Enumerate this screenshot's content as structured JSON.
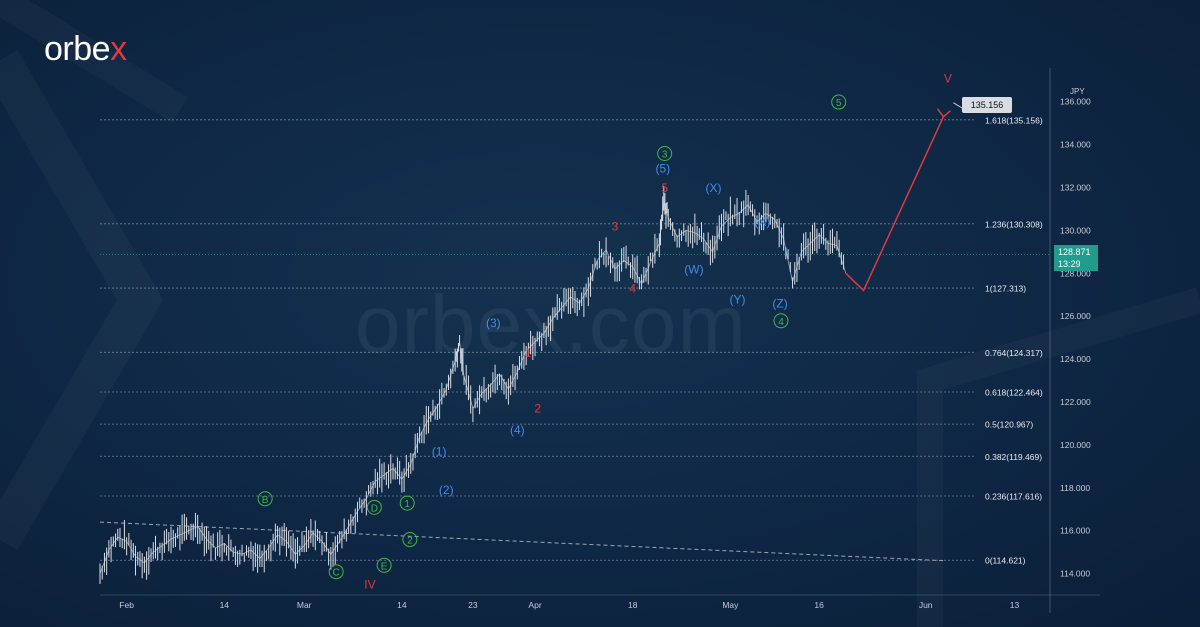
{
  "brand": {
    "logo_text_a": "orbe",
    "logo_text_x": "x",
    "watermark": "orbex.com"
  },
  "colors": {
    "background": "#0e2744",
    "candle": "#d9dde4",
    "fib_line": "#6f8399",
    "wave_red": "#e0393e",
    "wave_blue": "#3f8cf0",
    "wave_green": "#43b649",
    "trendline": "#9aa7b6",
    "current_badge": "#1f9c8c"
  },
  "chart_data": {
    "type": "line",
    "instrument": "",
    "y_axis_unit": "JPY",
    "ylim": [
      113.0,
      137.2
    ],
    "y_ticks": [
      "114.000",
      "116.000",
      "118.000",
      "120.000",
      "122.000",
      "124.000",
      "126.000",
      "128.000",
      "130.000",
      "132.000",
      "134.000",
      "136.000"
    ],
    "x_ticks": [
      "Feb",
      "14",
      "Mar",
      "14",
      "23",
      "Apr",
      "18",
      "May",
      "16",
      "Jun",
      "13"
    ],
    "x_tick_pos": [
      3,
      14,
      23,
      34,
      42,
      49,
      60,
      71,
      81,
      93,
      103
    ],
    "x_range": [
      0,
      107
    ],
    "grid": false,
    "current_price": "128.871",
    "current_time": "13:29",
    "fib_levels": [
      {
        "ratio": "0",
        "price": 114.621,
        "label": "0(114.621)"
      },
      {
        "ratio": "0.236",
        "price": 117.616,
        "label": "0.236(117.616)"
      },
      {
        "ratio": "0.382",
        "price": 119.469,
        "label": "0.382(119.469)"
      },
      {
        "ratio": "0.5",
        "price": 120.967,
        "label": "0.5(120.967)"
      },
      {
        "ratio": "0.618",
        "price": 122.464,
        "label": "0.618(122.464)"
      },
      {
        "ratio": "0.764",
        "price": 124.317,
        "label": "0.764(124.317)"
      },
      {
        "ratio": "1",
        "price": 127.313,
        "label": "1(127.313)"
      },
      {
        "ratio": "1.236",
        "price": 130.308,
        "label": "1.236(130.308)"
      },
      {
        "ratio": "1.618",
        "price": 135.156,
        "label": "1.618(135.156)"
      }
    ],
    "target_callout": "135.156",
    "price_series": [
      [
        0,
        114.0
      ],
      [
        1,
        115.1
      ],
      [
        2,
        115.7
      ],
      [
        3,
        115.5
      ],
      [
        4,
        114.8
      ],
      [
        5,
        114.5
      ],
      [
        6,
        115.0
      ],
      [
        7,
        115.3
      ],
      [
        8,
        115.6
      ],
      [
        9,
        115.8
      ],
      [
        10,
        116.0
      ],
      [
        11,
        116.2
      ],
      [
        12,
        115.6
      ],
      [
        13,
        115.2
      ],
      [
        14,
        115.4
      ],
      [
        15,
        115.0
      ],
      [
        16,
        114.9
      ],
      [
        17,
        115.1
      ],
      [
        18,
        114.7
      ],
      [
        19,
        115.2
      ],
      [
        20,
        115.8
      ],
      [
        21,
        115.5
      ],
      [
        22,
        114.9
      ],
      [
        23,
        115.3
      ],
      [
        24,
        115.9
      ],
      [
        25,
        115.5
      ],
      [
        26,
        114.9
      ],
      [
        27,
        115.5
      ],
      [
        28,
        116.2
      ],
      [
        29,
        116.9
      ],
      [
        30,
        117.5
      ],
      [
        31,
        118.3
      ],
      [
        32,
        118.6
      ],
      [
        33,
        118.9
      ],
      [
        34,
        118.4
      ],
      [
        35,
        119.1
      ],
      [
        36,
        120.4
      ],
      [
        37,
        121.2
      ],
      [
        38,
        121.8
      ],
      [
        39,
        122.6
      ],
      [
        40,
        123.9
      ],
      [
        40.5,
        124.8
      ],
      [
        41,
        123.2
      ],
      [
        42,
        121.7
      ],
      [
        43,
        122.4
      ],
      [
        44,
        122.8
      ],
      [
        45,
        123.3
      ],
      [
        46,
        122.6
      ],
      [
        47,
        123.4
      ],
      [
        48,
        124.4
      ],
      [
        49,
        124.8
      ],
      [
        50,
        125.2
      ],
      [
        51,
        125.9
      ],
      [
        52,
        126.4
      ],
      [
        53,
        126.9
      ],
      [
        54,
        126.6
      ],
      [
        55,
        127.3
      ],
      [
        56,
        128.6
      ],
      [
        57,
        129.1
      ],
      [
        58,
        128.2
      ],
      [
        59,
        128.6
      ],
      [
        60,
        128.3
      ],
      [
        61,
        127.5
      ],
      [
        62,
        128.5
      ],
      [
        63,
        129.4
      ],
      [
        63.5,
        131.3
      ],
      [
        64,
        130.6
      ],
      [
        65,
        129.7
      ],
      [
        66,
        130.0
      ],
      [
        67,
        129.9
      ],
      [
        68,
        129.6
      ],
      [
        69,
        129.0
      ],
      [
        70,
        130.2
      ],
      [
        71,
        130.6
      ],
      [
        72,
        130.8
      ],
      [
        73,
        131.2
      ],
      [
        74,
        130.4
      ],
      [
        75,
        130.8
      ],
      [
        76,
        130.5
      ],
      [
        77,
        129.6
      ],
      [
        78,
        127.6
      ],
      [
        79,
        129.0
      ],
      [
        80,
        129.4
      ],
      [
        81,
        129.8
      ],
      [
        82,
        129.4
      ],
      [
        83,
        129.3
      ],
      [
        84,
        128.0
      ]
    ],
    "projection": [
      [
        84,
        128.0
      ],
      [
        86,
        127.2
      ],
      [
        95,
        135.3
      ]
    ],
    "trendline": [
      [
        0,
        116.4
      ],
      [
        95,
        114.6
      ]
    ],
    "wave_labels": [
      {
        "text": "IV",
        "x": 30.4,
        "y": 113.3,
        "color": "red",
        "style": "plain"
      },
      {
        "text": "V",
        "x": 95.5,
        "y": 136.9,
        "color": "red",
        "style": "plain"
      },
      {
        "text": "1",
        "x": 48.2,
        "y": 124.1,
        "color": "red",
        "style": "plain"
      },
      {
        "text": "2",
        "x": 49.3,
        "y": 121.5,
        "color": "red",
        "style": "plain"
      },
      {
        "text": "3",
        "x": 58.0,
        "y": 130.0,
        "color": "red",
        "style": "plain"
      },
      {
        "text": "4",
        "x": 60.0,
        "y": 127.1,
        "color": "red",
        "style": "plain"
      },
      {
        "text": "5",
        "x": 63.6,
        "y": 131.8,
        "color": "red",
        "style": "plain"
      },
      {
        "text": "(1)",
        "x": 38.2,
        "y": 119.5,
        "color": "blue",
        "style": "plain"
      },
      {
        "text": "(2)",
        "x": 39.0,
        "y": 117.7,
        "color": "blue",
        "style": "plain"
      },
      {
        "text": "(3)",
        "x": 44.3,
        "y": 125.5,
        "color": "blue",
        "style": "plain"
      },
      {
        "text": "(4)",
        "x": 47.0,
        "y": 120.5,
        "color": "blue",
        "style": "plain"
      },
      {
        "text": "(5)",
        "x": 63.4,
        "y": 132.7,
        "color": "blue",
        "style": "plain"
      },
      {
        "text": "(X)",
        "x": 69.1,
        "y": 131.8,
        "color": "blue",
        "style": "plain"
      },
      {
        "text": "(X)",
        "x": 74.6,
        "y": 130.2,
        "color": "blue",
        "style": "plain"
      },
      {
        "text": "(W)",
        "x": 66.9,
        "y": 128.0,
        "color": "blue",
        "style": "plain"
      },
      {
        "text": "(Y)",
        "x": 71.8,
        "y": 126.6,
        "color": "blue",
        "style": "plain"
      },
      {
        "text": "(Z)",
        "x": 76.6,
        "y": 126.4,
        "color": "blue",
        "style": "plain"
      },
      {
        "text": "B",
        "x": 18.6,
        "y": 117.3,
        "color": "green",
        "style": "circle"
      },
      {
        "text": "C",
        "x": 26.6,
        "y": 113.9,
        "color": "green",
        "style": "circle"
      },
      {
        "text": "D",
        "x": 30.9,
        "y": 116.9,
        "color": "green",
        "style": "circle"
      },
      {
        "text": "E",
        "x": 32.0,
        "y": 114.2,
        "color": "green",
        "style": "circle"
      },
      {
        "text": "1",
        "x": 34.6,
        "y": 117.1,
        "color": "green",
        "style": "circle"
      },
      {
        "text": "2",
        "x": 34.9,
        "y": 115.4,
        "color": "green",
        "style": "circle"
      },
      {
        "text": "3",
        "x": 63.6,
        "y": 133.4,
        "color": "green",
        "style": "circle"
      },
      {
        "text": "4",
        "x": 76.7,
        "y": 125.6,
        "color": "green",
        "style": "circle"
      },
      {
        "text": "5",
        "x": 83.2,
        "y": 135.8,
        "color": "green",
        "style": "circle"
      }
    ]
  }
}
